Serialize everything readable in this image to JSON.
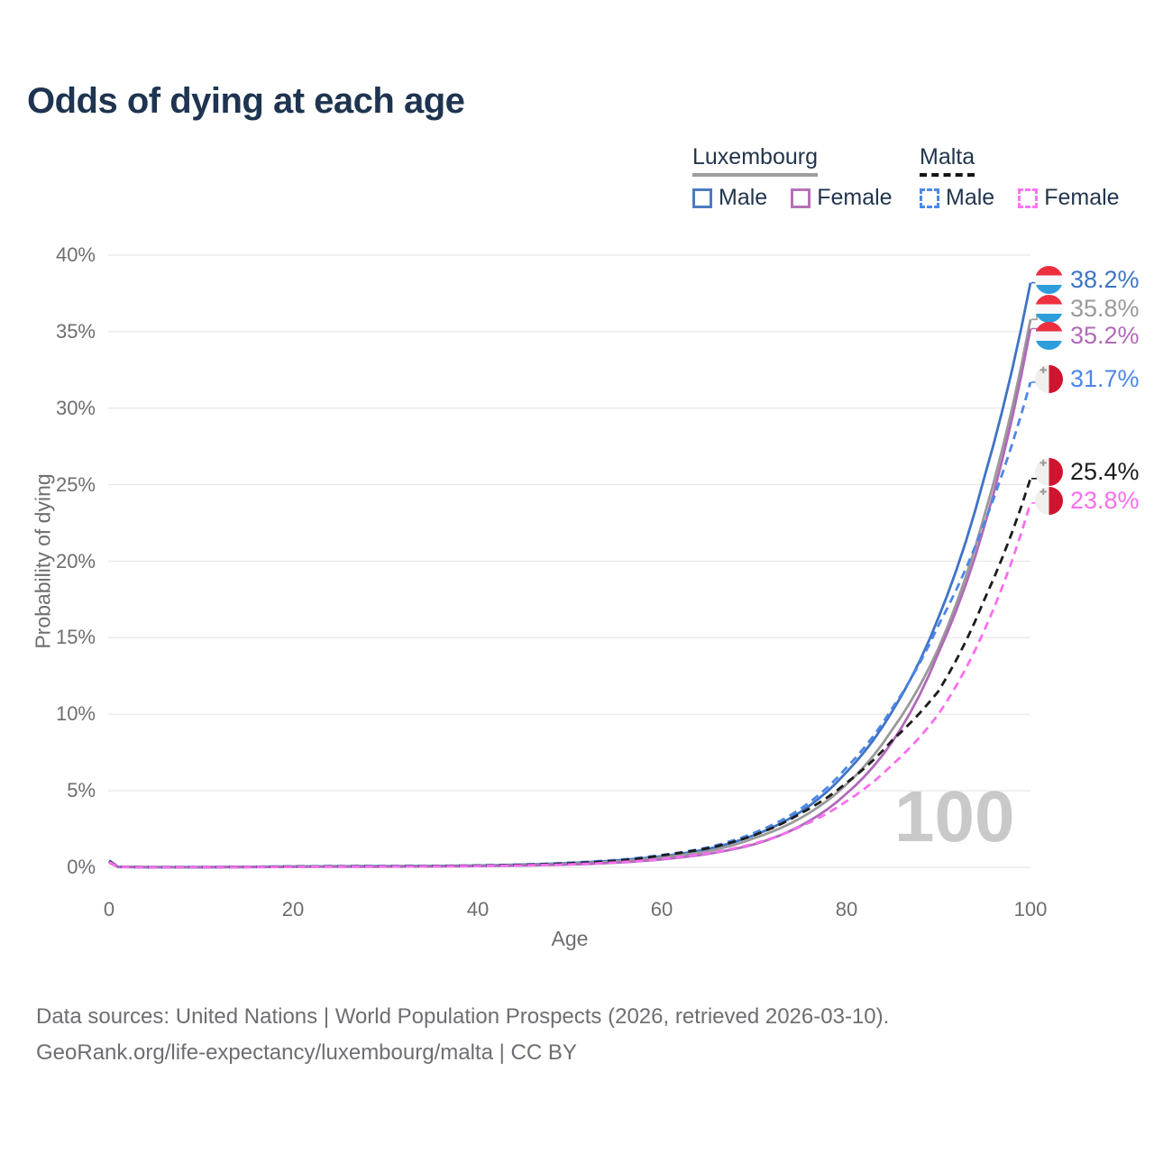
{
  "page_title": "Odds of dying at each age",
  "legend": {
    "groups": [
      {
        "label": "Luxembourg",
        "underline_style": "solid",
        "underline_color": "#9e9e9e",
        "items": [
          {
            "label": "Male",
            "color": "#4b7bc0",
            "line_style": "solid"
          },
          {
            "label": "Female",
            "color": "#b671b8",
            "line_style": "solid"
          }
        ]
      },
      {
        "label": "Malta",
        "underline_style": "dashed",
        "underline_color": "#151515",
        "items": [
          {
            "label": "Male",
            "color": "#4d87ea",
            "line_style": "dashed"
          },
          {
            "label": "Female",
            "color": "#fa75f0",
            "line_style": "dashed"
          }
        ]
      }
    ]
  },
  "chart_data": {
    "type": "line",
    "title": "Odds of dying at each age",
    "xlabel": "Age",
    "ylabel": "Probability of dying",
    "xlim": [
      0,
      100
    ],
    "ylim": [
      0,
      40
    ],
    "grid": "horizontal",
    "x_ticks": [
      "0",
      "20",
      "40",
      "60",
      "80",
      "100"
    ],
    "y_ticks": [
      "0%",
      "5%",
      "10%",
      "15%",
      "20%",
      "25%",
      "30%",
      "35%",
      "40%"
    ],
    "age_watermark": "100",
    "x": [
      0,
      1,
      5,
      10,
      15,
      20,
      25,
      30,
      35,
      40,
      45,
      50,
      55,
      60,
      65,
      70,
      75,
      80,
      85,
      90,
      95,
      100
    ],
    "series": [
      {
        "name": "Luxembourg Male",
        "country": "Luxembourg",
        "flag": "lu",
        "line_style": "solid",
        "color": "#3e74c4",
        "end_label": "38.2%",
        "values": [
          0.4,
          0.03,
          0.01,
          0.012,
          0.03,
          0.06,
          0.07,
          0.08,
          0.09,
          0.12,
          0.18,
          0.28,
          0.45,
          0.72,
          1.2,
          2.1,
          3.6,
          6.2,
          10.2,
          16.3,
          25.5,
          38.2
        ]
      },
      {
        "name": "Luxembourg Total",
        "country": "Luxembourg",
        "flag": "lu",
        "line_style": "solid",
        "color": "#9a9a9a",
        "end_label": "35.8%",
        "values": [
          0.35,
          0.025,
          0.01,
          0.01,
          0.02,
          0.05,
          0.055,
          0.06,
          0.07,
          0.1,
          0.15,
          0.24,
          0.38,
          0.65,
          1.05,
          1.9,
          3.2,
          5.4,
          9.0,
          14.3,
          23.0,
          35.8
        ]
      },
      {
        "name": "Luxembourg Female",
        "country": "Luxembourg",
        "flag": "lu",
        "line_style": "solid",
        "color": "#b06ab8",
        "end_label": "35.2%",
        "values": [
          0.3,
          0.02,
          0.008,
          0.009,
          0.015,
          0.03,
          0.04,
          0.045,
          0.055,
          0.08,
          0.12,
          0.18,
          0.3,
          0.52,
          0.88,
          1.5,
          2.7,
          4.8,
          8.2,
          14.0,
          22.3,
          35.2
        ]
      },
      {
        "name": "Malta Male",
        "country": "Malta",
        "flag": "mt",
        "line_style": "dashed",
        "color": "#4d86e8",
        "end_label": "31.7%",
        "values": [
          0.45,
          0.03,
          0.01,
          0.012,
          0.03,
          0.06,
          0.07,
          0.08,
          0.09,
          0.12,
          0.18,
          0.3,
          0.48,
          0.8,
          1.3,
          2.25,
          3.8,
          6.5,
          10.4,
          15.8,
          22.5,
          31.7
        ]
      },
      {
        "name": "Malta Total",
        "country": "Malta",
        "flag": "mt",
        "line_style": "dashed",
        "color": "#1c1c1c",
        "end_label": "25.4%",
        "values": [
          0.4,
          0.028,
          0.01,
          0.01,
          0.02,
          0.05,
          0.06,
          0.065,
          0.075,
          0.11,
          0.16,
          0.26,
          0.42,
          0.78,
          1.25,
          2.1,
          3.5,
          5.5,
          8.3,
          11.5,
          17.5,
          25.4
        ]
      },
      {
        "name": "Malta Female",
        "country": "Malta",
        "flag": "mt",
        "line_style": "dashed",
        "color": "#f96ef0",
        "end_label": "23.8%",
        "values": [
          0.35,
          0.022,
          0.008,
          0.009,
          0.015,
          0.03,
          0.04,
          0.05,
          0.06,
          0.085,
          0.13,
          0.19,
          0.32,
          0.55,
          0.92,
          1.55,
          2.65,
          4.3,
          6.7,
          10.0,
          15.5,
          23.8
        ]
      }
    ]
  },
  "footer": {
    "line1": "Data sources: United Nations | World Population Prospects (2026, retrieved 2026-03-10).",
    "line2": "GeoRank.org/life-expectancy/luxembourg/malta | CC BY"
  }
}
